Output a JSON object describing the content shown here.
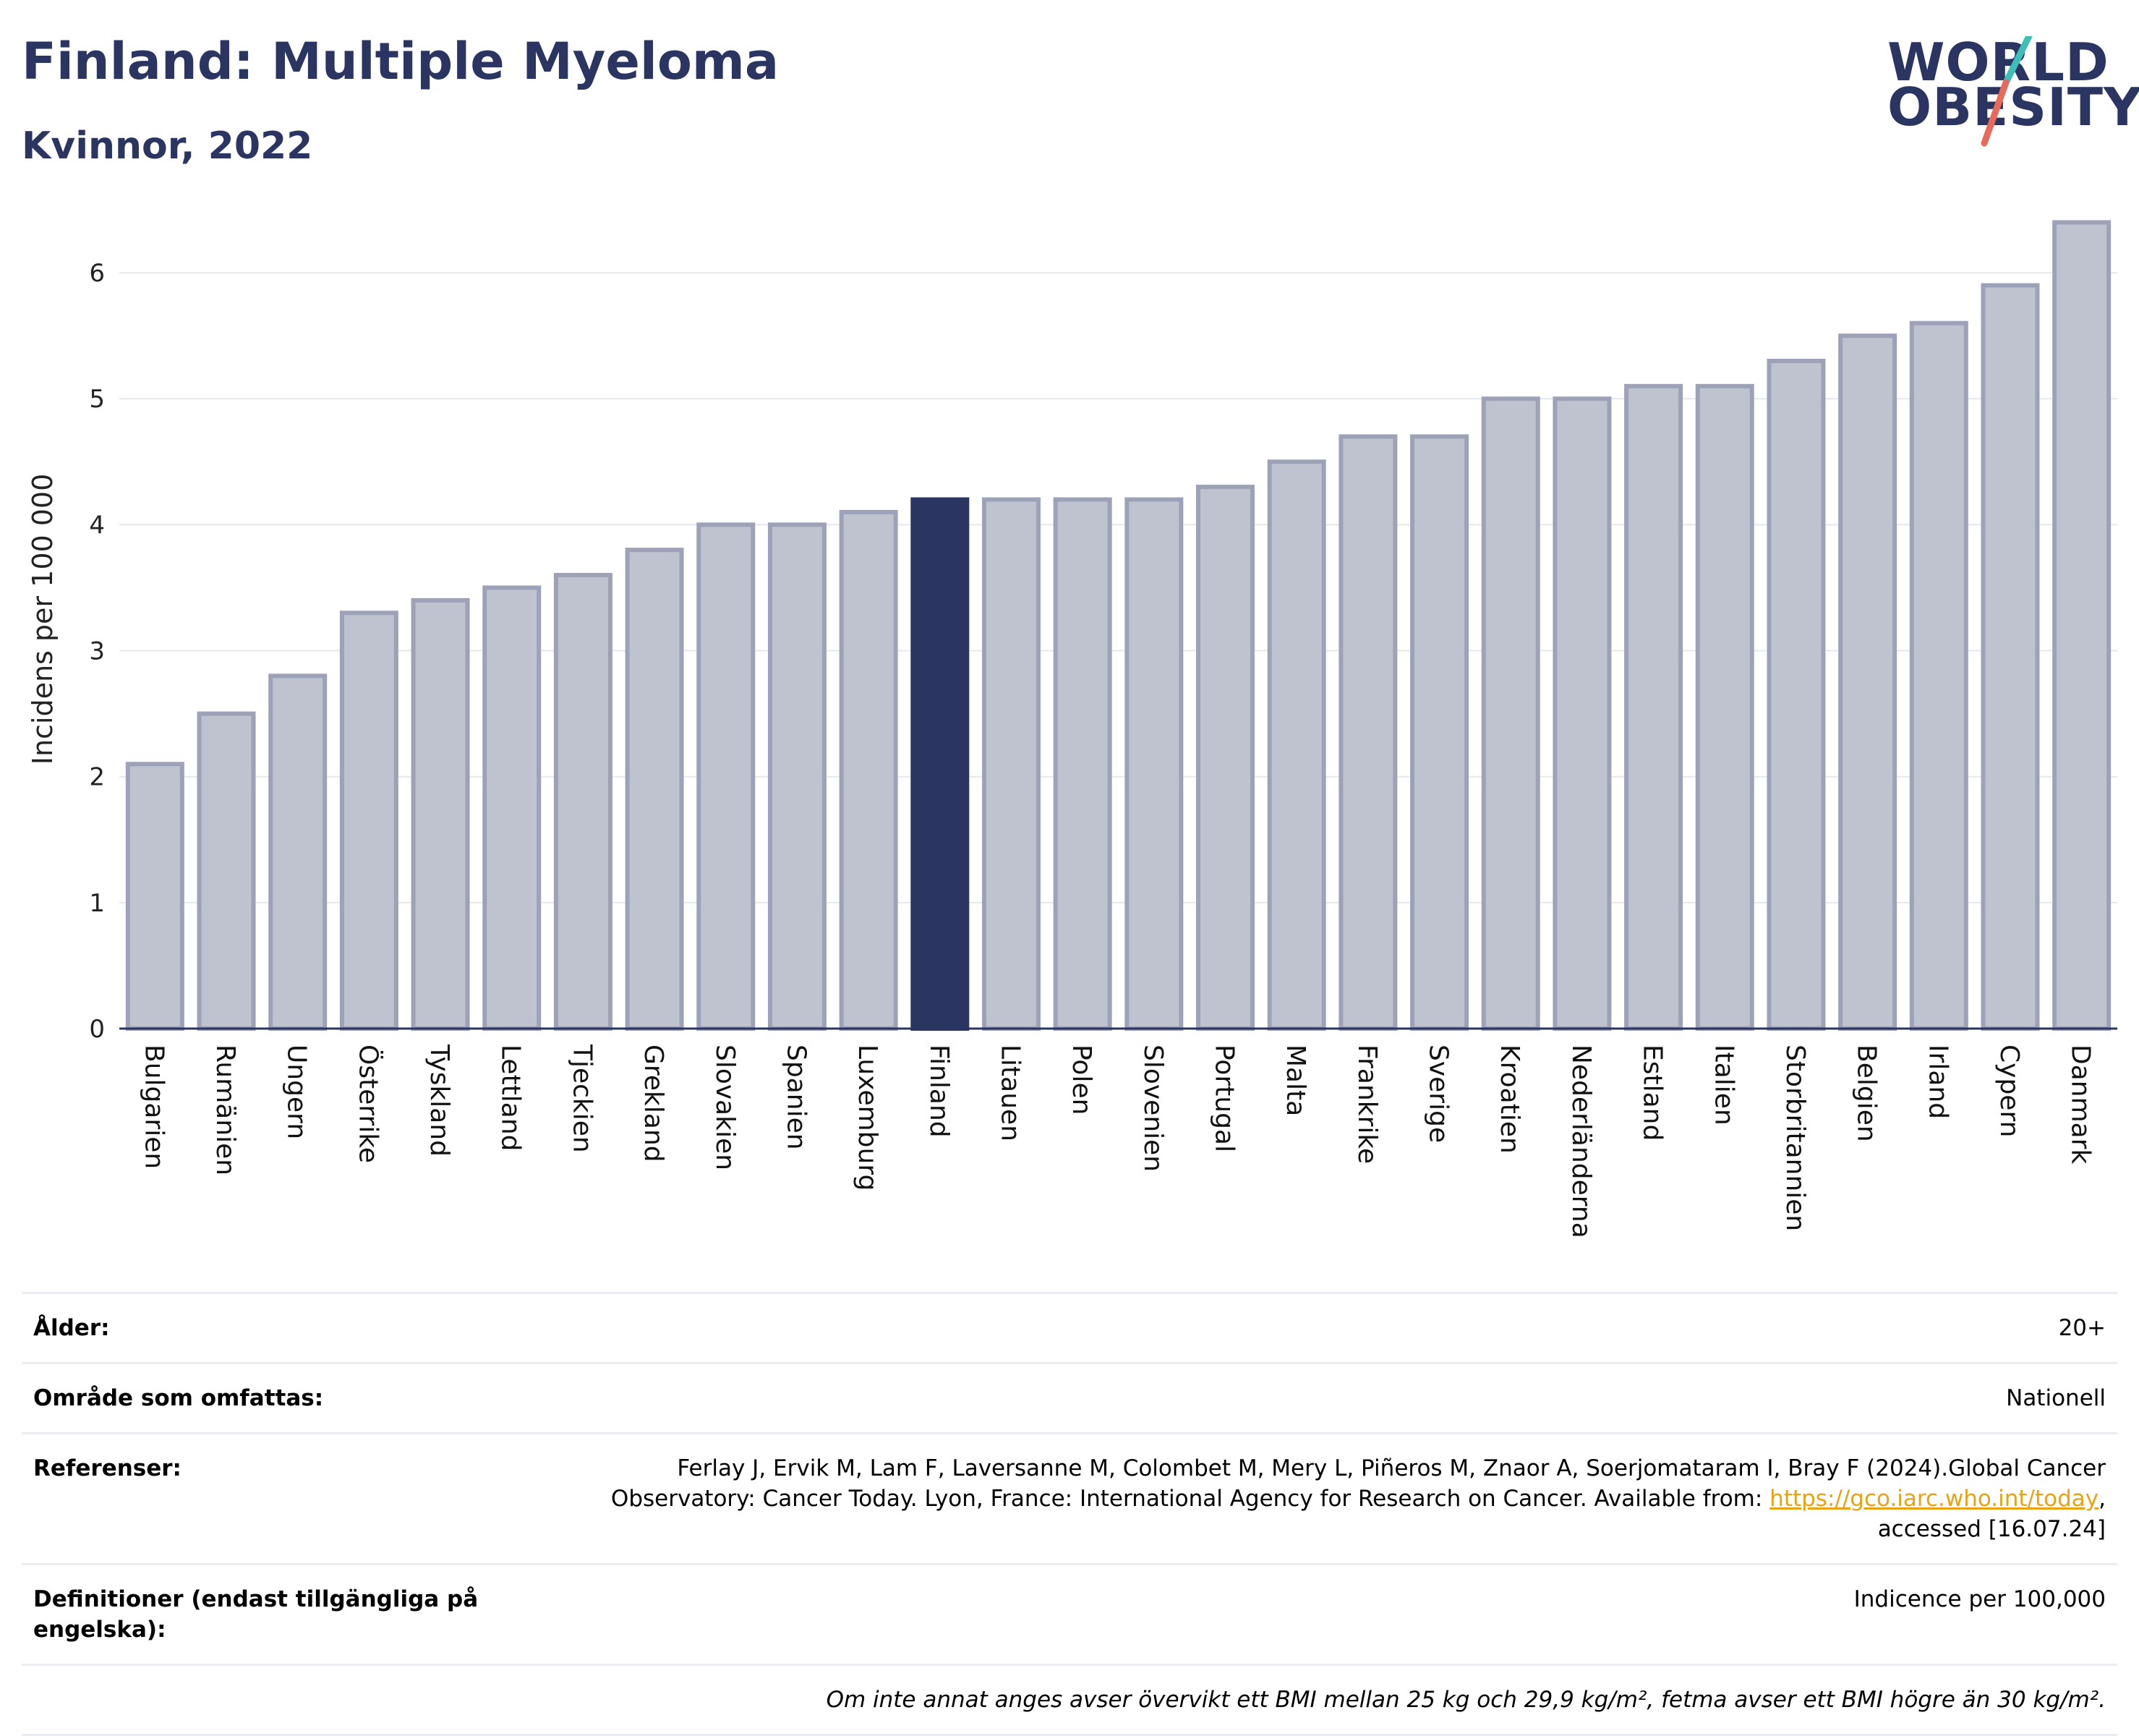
{
  "header": {
    "title": "Finland: Multiple Myeloma",
    "subtitle": "Kvinnor, 2022",
    "logo_line1": "WORLD",
    "logo_line2": "OBESITY"
  },
  "colors": {
    "bar": "#bfc2cf",
    "bar_stroke": "#9da2b8",
    "highlight": "#2a3561",
    "grid": "#e6e8ee",
    "axis": "#2a3561",
    "logo_teal": "#3bbfb8",
    "logo_coral": "#e86a5a",
    "link": "#e8a314"
  },
  "chart_data": {
    "type": "bar",
    "ylabel": "Incidens per 100 000",
    "xlabel": "",
    "ylim": [
      0,
      6.5
    ],
    "yticks": [
      0,
      1,
      2,
      3,
      4,
      5,
      6
    ],
    "grid": true,
    "highlight": "Finland",
    "categories": [
      "Bulgarien",
      "Rumänien",
      "Ungern",
      "Österrike",
      "Tyskland",
      "Lettland",
      "Tjeckien",
      "Grekland",
      "Slovakien",
      "Spanien",
      "Luxemburg",
      "Finland",
      "Litauen",
      "Polen",
      "Slovenien",
      "Portugal",
      "Malta",
      "Frankrike",
      "Sverige",
      "Kroatien",
      "Nederländerna",
      "Estland",
      "Italien",
      "Storbritannien",
      "Belgien",
      "Irland",
      "Cypern",
      "Danmark"
    ],
    "values": [
      2.1,
      2.5,
      2.8,
      3.3,
      3.4,
      3.5,
      3.6,
      3.8,
      4.0,
      4.0,
      4.1,
      4.2,
      4.2,
      4.2,
      4.2,
      4.3,
      4.5,
      4.7,
      4.7,
      5.0,
      5.0,
      5.1,
      5.1,
      5.3,
      5.5,
      5.6,
      5.9,
      6.4
    ]
  },
  "info": {
    "age_label": "Ålder:",
    "age_value": "20+",
    "area_label": "Område som omfattas:",
    "area_value": "Nationell",
    "refs_label": "Referenser:",
    "refs_text_1": "Ferlay J, Ervik M, Lam F, Laversanne M, Colombet M, Mery L, Piñeros M, Znaor A, Soerjomataram I, Bray F (2024).Global Cancer",
    "refs_text_2": "Observatory: Cancer Today. Lyon, France: International Agency for Research on Cancer. Available from:",
    "refs_link": "https://gco.iarc.who.int/today",
    "refs_text_3": "accessed [16.07.24]",
    "defs_label": "Definitioner (endast tillgängliga på engelska):",
    "defs_value": "Indicence per 100,000",
    "note": "Om inte annat anges avser övervikt ett BMI mellan 25 kg och 29,9 kg/m², fetma avser ett BMI högre än 30 kg/m²."
  }
}
